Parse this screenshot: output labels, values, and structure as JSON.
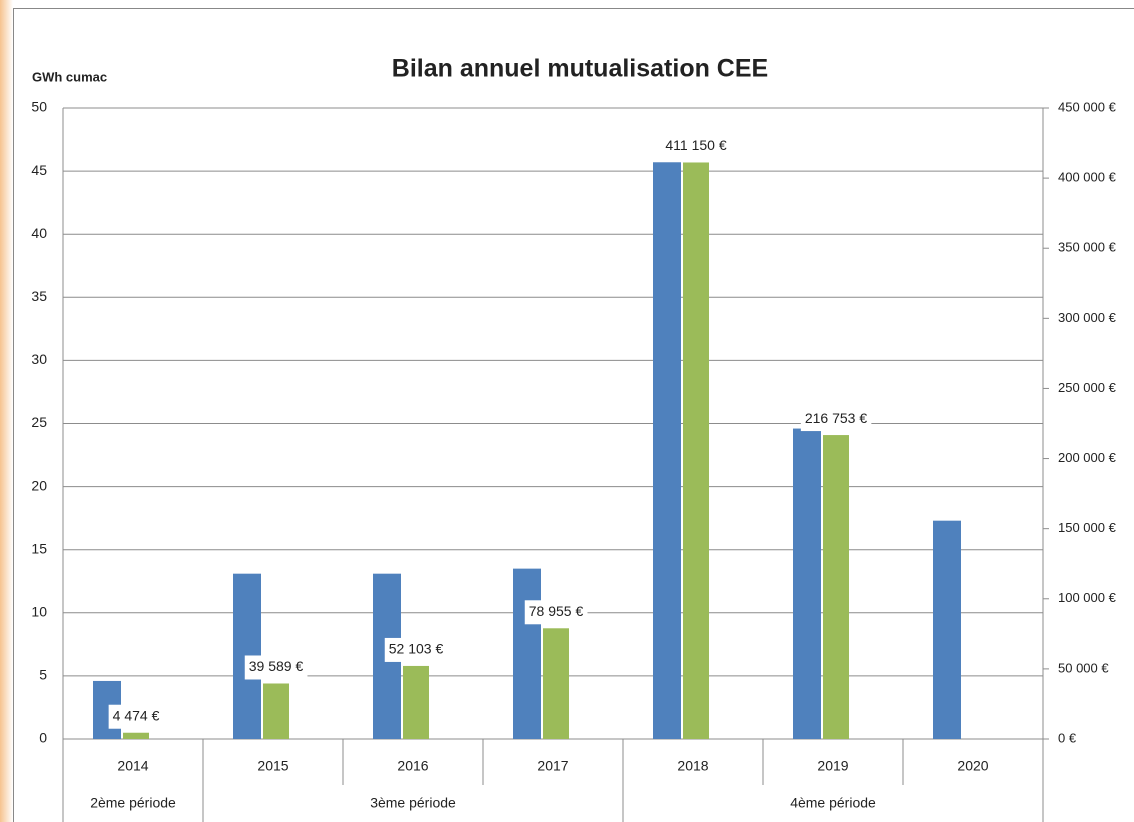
{
  "chart_data": {
    "type": "bar",
    "title": "Bilan annuel mutualisation CEE",
    "y_label": "GWh cumac",
    "categories": [
      "2014",
      "2015",
      "2016",
      "2017",
      "2018",
      "2019",
      "2020"
    ],
    "category_periods": [
      "2ème période",
      "3ème période",
      "3ème période",
      "3ème période",
      "4ème période",
      "4ème période",
      "4ème période"
    ],
    "series": [
      {
        "color": "#4f81bd",
        "values": [
          4.6,
          13.1,
          13.1,
          13.5,
          45.7,
          24.6,
          17.3
        ]
      },
      {
        "color": "#9bbb59",
        "axis": "y2",
        "values": [
          4474,
          39589,
          52103,
          78955,
          411150,
          216753,
          null
        ],
        "value_labels": [
          "4 474 €",
          "39 589 €",
          "52 103 €",
          "78 955 €",
          "411 150 €",
          "216 753 €",
          null
        ]
      }
    ],
    "ylim": [
      0,
      50
    ],
    "yticks": [
      0,
      5,
      10,
      15,
      20,
      25,
      30,
      35,
      40,
      45,
      50
    ],
    "y2lim": [
      0,
      450000
    ],
    "y2ticks": [
      {
        "value": 0,
        "label": "0 €"
      },
      {
        "value": 50000,
        "label": "50 000 €"
      },
      {
        "value": 100000,
        "label": "100 000 €"
      },
      {
        "value": 150000,
        "label": "150 000 €"
      },
      {
        "value": 200000,
        "label": "200 000 €"
      },
      {
        "value": 250000,
        "label": "250 000 €"
      },
      {
        "value": 300000,
        "label": "300 000 €"
      },
      {
        "value": 350000,
        "label": "350 000 €"
      },
      {
        "value": 400000,
        "label": "400 000 €"
      },
      {
        "value": 450000,
        "label": "450 000 €"
      }
    ],
    "grid": true
  }
}
